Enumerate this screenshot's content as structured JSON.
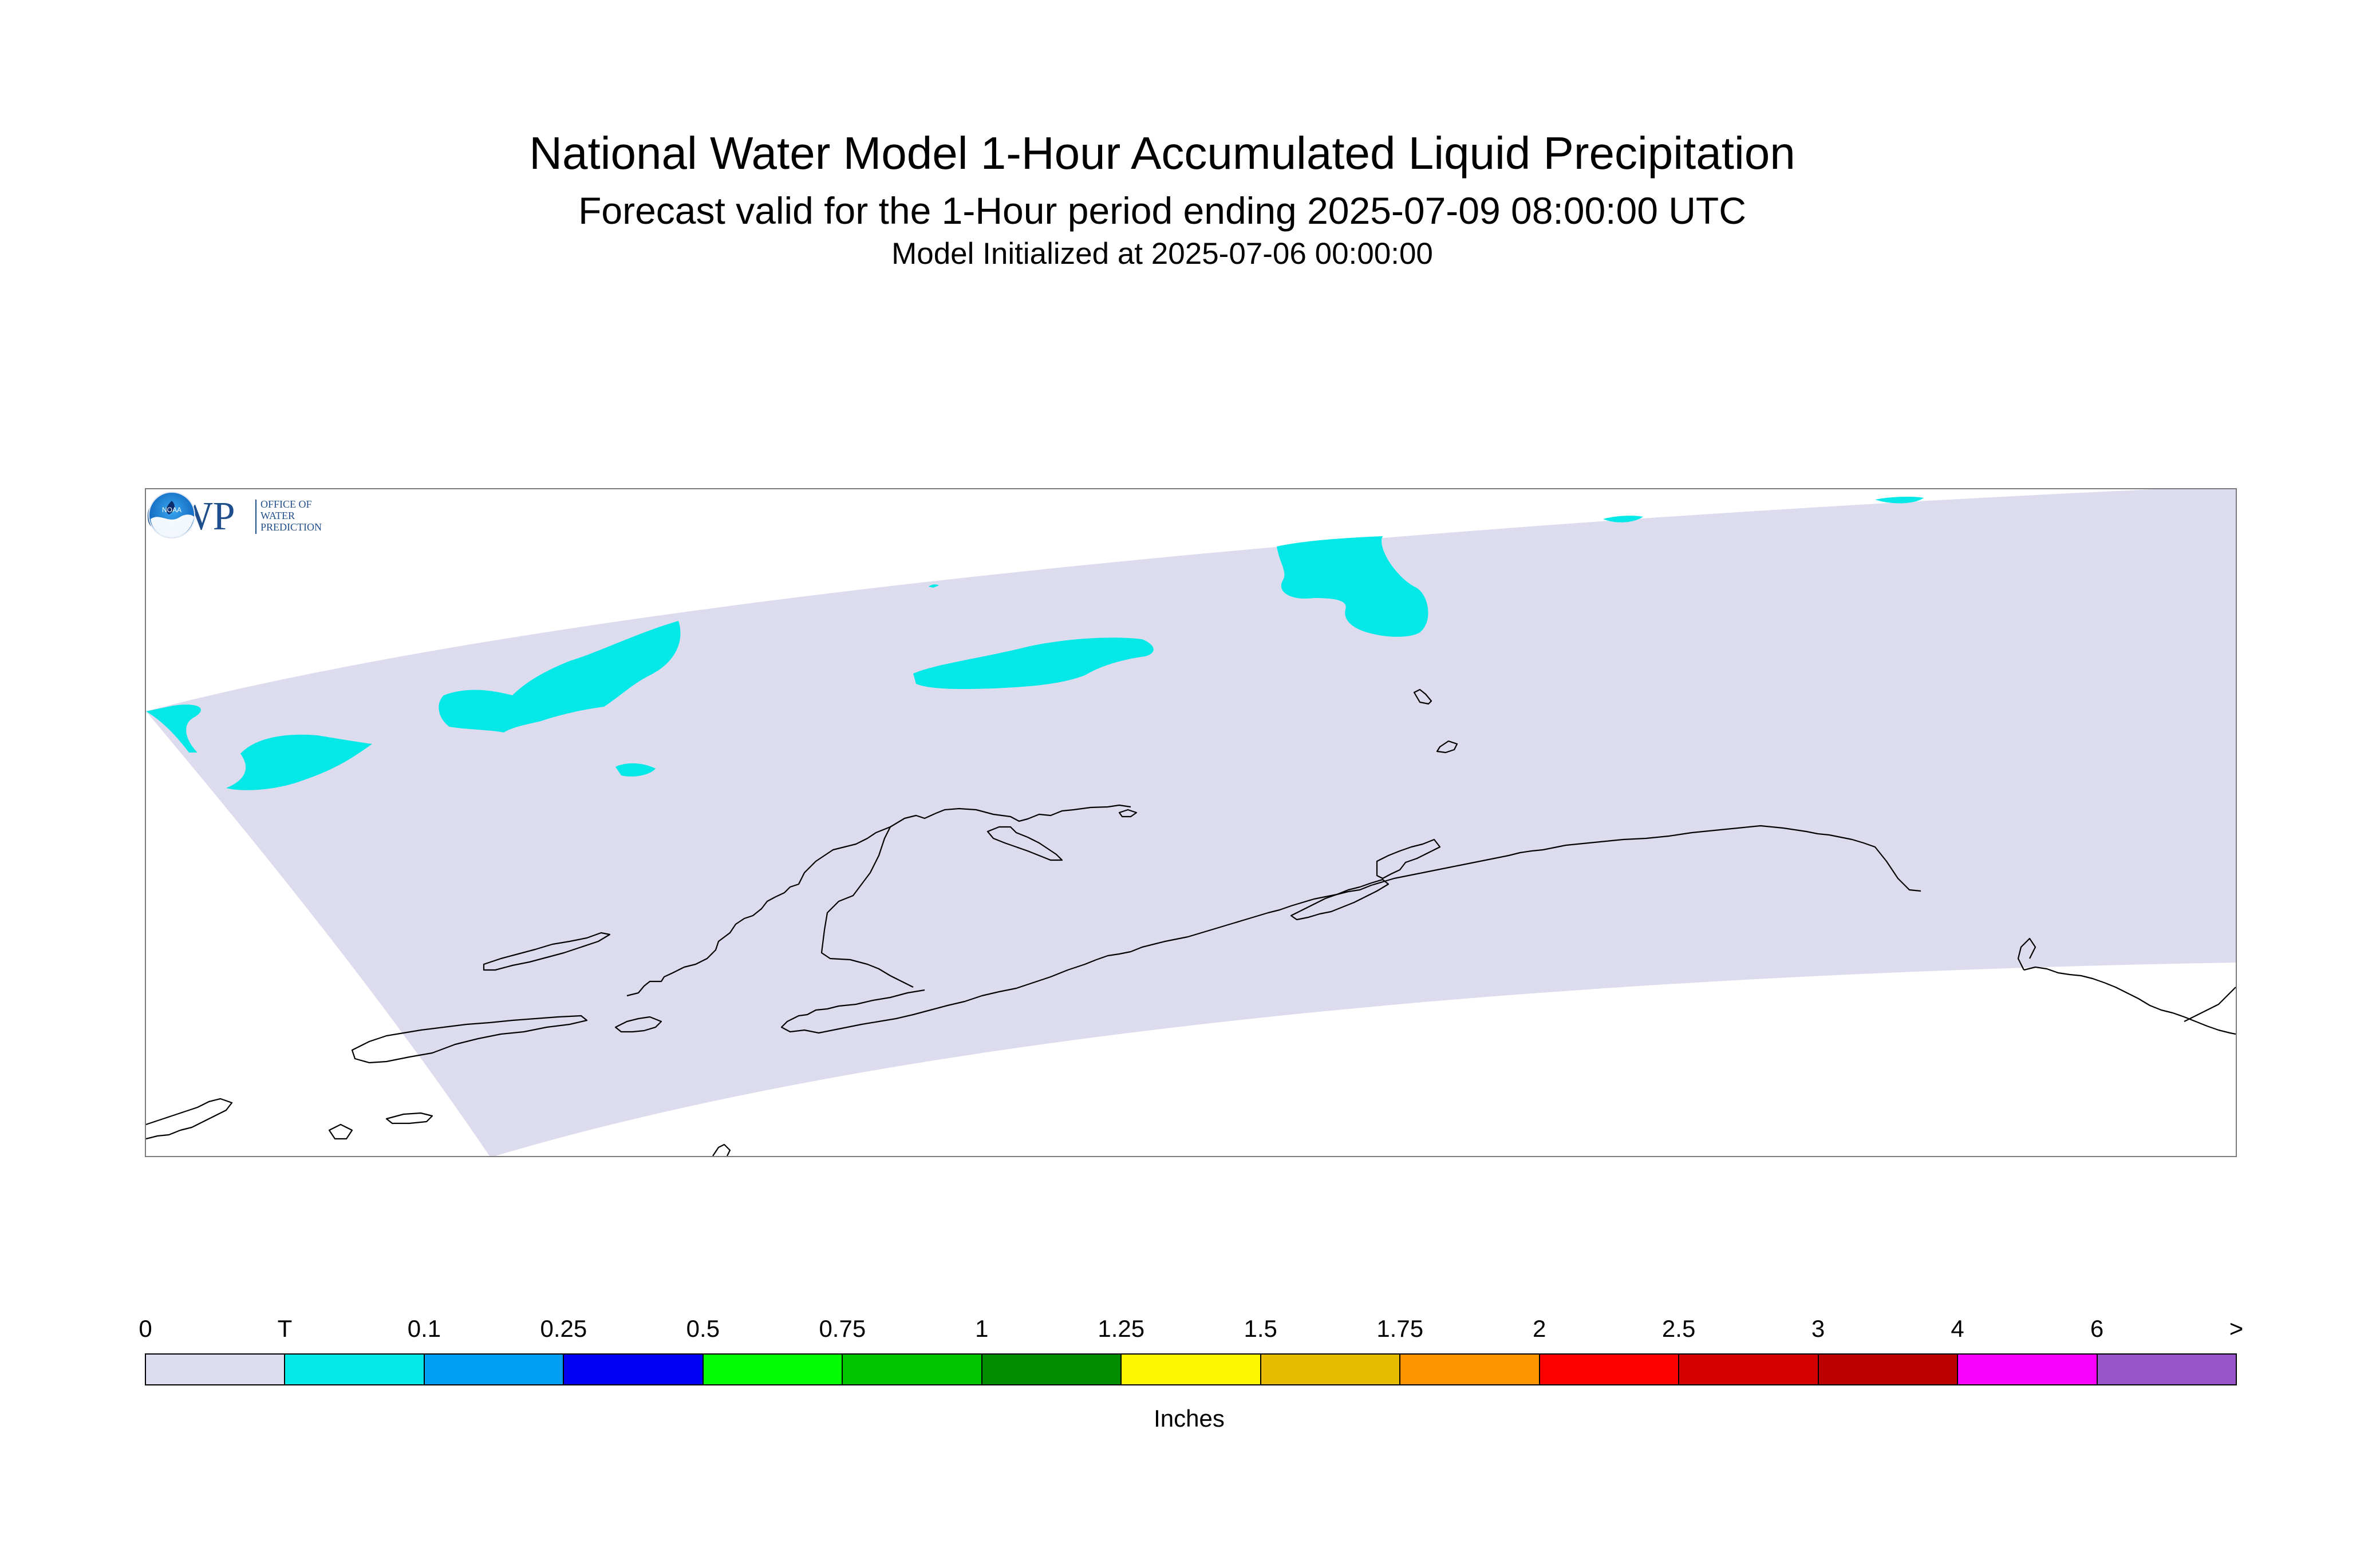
{
  "header": {
    "title": "National Water Model 1-Hour Accumulated Liquid Precipitation",
    "subtitle": "Forecast valid for the 1-Hour period ending 2025-07-09 08:00:00 UTC",
    "init": "Model Initialized at 2025-07-06 00:00:00"
  },
  "map": {
    "region": "Alaska",
    "domain_fill": "#dcdcee",
    "precip_fill": "#04e9e7",
    "coast_color": "#000000"
  },
  "logos": {
    "owp": {
      "text": "OWP",
      "lines": [
        "OFFICE OF",
        "WATER",
        "PREDICTION"
      ],
      "color": "#1f4e8c"
    },
    "noaa": {
      "text": "NOAA"
    }
  },
  "legend": {
    "labels": [
      "0",
      "T",
      "0.1",
      "0.25",
      "0.5",
      "0.75",
      "1",
      "1.25",
      "1.5",
      "1.75",
      "2",
      "2.5",
      "3",
      "4",
      "6",
      ">"
    ],
    "colors": [
      "#dcdcee",
      "#04e9e7",
      "#019ff4",
      "#0300f4",
      "#02fd02",
      "#01c501",
      "#008e00",
      "#fdf802",
      "#e5bc00",
      "#fd9500",
      "#fd0000",
      "#d40000",
      "#bc0000",
      "#f800fd",
      "#9854c6"
    ],
    "unit": "Inches"
  }
}
